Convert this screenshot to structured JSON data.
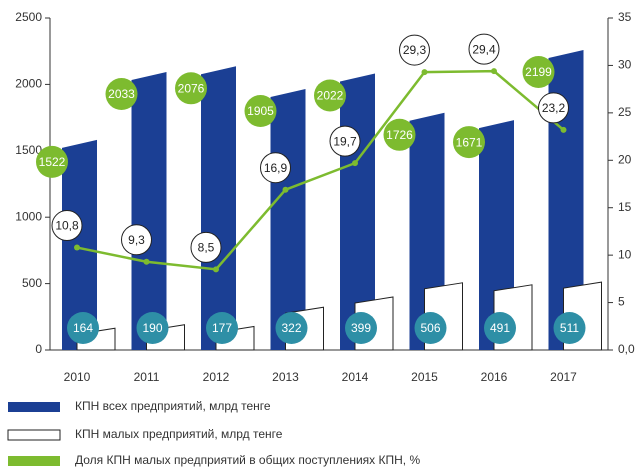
{
  "chart_data": {
    "type": "bar-line",
    "categories": [
      "2010",
      "2011",
      "2012",
      "2013",
      "2014",
      "2015",
      "2016",
      "2017"
    ],
    "series": [
      {
        "name": "КПН всех предприятий, млрд тенге",
        "color": "#1b3f94",
        "values": [
          1522,
          2033,
          2076,
          1905,
          2022,
          1726,
          1671,
          2199
        ]
      },
      {
        "name": "КПН малых предприятий, млрд тенге",
        "color": "#ffffff",
        "values": [
          164,
          190,
          177,
          322,
          399,
          506,
          491,
          511
        ]
      },
      {
        "name": "Доля КПН малых предприятий в общих поступлениях КПН, %",
        "color": "#7dbb2f",
        "axis": "y2",
        "values": [
          10.8,
          9.3,
          8.5,
          16.9,
          19.7,
          29.3,
          29.4,
          23.2
        ],
        "value_labels": [
          "10,8",
          "9,3",
          "8,5",
          "16,9",
          "19,7",
          "29,3",
          "29,4",
          "23,2"
        ]
      }
    ],
    "ylim": [
      0,
      2500
    ],
    "yticks": [
      0,
      500,
      1000,
      1500,
      2000,
      2500
    ],
    "y2lim": [
      0,
      35
    ],
    "y2ticks": [
      {
        "value": 0,
        "label": "0,0"
      },
      5,
      10,
      15,
      20,
      25,
      30,
      35
    ],
    "grid": false,
    "legend": "bottom"
  }
}
